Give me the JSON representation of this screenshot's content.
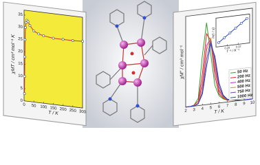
{
  "chart_data": [
    {
      "type": "line",
      "x_label": "T / K",
      "y_label": "χMT / cm³ mol⁻¹ K",
      "x": [
        2,
        3,
        4,
        5,
        7,
        10,
        15,
        20,
        30,
        50,
        75,
        100,
        150,
        200,
        250,
        300
      ],
      "values": [
        3,
        10,
        18,
        25,
        30,
        32,
        33,
        32.5,
        31,
        29,
        28,
        27.5,
        27,
        27,
        27,
        27.2
      ],
      "color": "#d0302a",
      "marker_color": "#555555",
      "background": "#f3ea3a",
      "xlim": [
        0,
        300
      ],
      "xticks": [
        0,
        50,
        100,
        150,
        200,
        250,
        300
      ],
      "ylim": [
        0,
        37
      ],
      "yticks": [
        0,
        5,
        10,
        15,
        20,
        25,
        30,
        35
      ]
    },
    {
      "type": "line",
      "x_label": "T / K",
      "y_label": "χM'' / cm³ mol⁻¹",
      "x": [
        2,
        2.5,
        3,
        3.5,
        4,
        4.5,
        5,
        5.5,
        6,
        6.5,
        7,
        8,
        9,
        10
      ],
      "xlim": [
        2,
        10
      ],
      "xticks": [
        2,
        3,
        4,
        5,
        6,
        7,
        8,
        9,
        10
      ],
      "ylim": [
        0,
        1
      ],
      "legend": "lower right",
      "series": [
        {
          "name": "50 Hz",
          "color": "#2aa02a",
          "values": [
            0,
            0,
            0.01,
            0.08,
            0.55,
            0.9,
            0.55,
            0.2,
            0.08,
            0.04,
            0.02,
            0.01,
            0,
            0
          ]
        },
        {
          "name": "200 Hz",
          "color": "#e02020",
          "values": [
            0,
            0,
            0.01,
            0.05,
            0.35,
            0.78,
            0.7,
            0.3,
            0.1,
            0.05,
            0.02,
            0.01,
            0,
            0
          ]
        },
        {
          "name": "400 Hz",
          "color": "#d020c0",
          "values": [
            0,
            0,
            0,
            0.03,
            0.25,
            0.65,
            0.72,
            0.38,
            0.13,
            0.06,
            0.03,
            0.01,
            0,
            0
          ]
        },
        {
          "name": "500 Hz",
          "color": "#e08a10",
          "values": [
            0,
            0,
            0,
            0.03,
            0.2,
            0.6,
            0.72,
            0.42,
            0.15,
            0.06,
            0.03,
            0.01,
            0,
            0
          ]
        },
        {
          "name": "750 Hz",
          "color": "#7a3ab0",
          "values": [
            0,
            0,
            0,
            0.02,
            0.15,
            0.5,
            0.7,
            0.48,
            0.18,
            0.07,
            0.03,
            0.01,
            0,
            0
          ]
        },
        {
          "name": "1000 Hz",
          "color": "#2040c0",
          "values": [
            0,
            0,
            0,
            0.02,
            0.12,
            0.42,
            0.66,
            0.52,
            0.22,
            0.08,
            0.03,
            0.01,
            0,
            0
          ]
        }
      ]
    },
    {
      "type": "line",
      "x_label": "T⁻¹ / K⁻¹",
      "y_label": "ln(τ / s)",
      "x": [
        0.185,
        0.195,
        0.205,
        0.215,
        0.225,
        0.235
      ],
      "values": [
        -9.5,
        -9,
        -8.5,
        -8,
        -7.5,
        -7
      ],
      "color": "#2040c0",
      "marker_color": "#2040c0",
      "xlim": [
        0.18,
        0.24
      ],
      "xticks": [
        {
          "value": 0.2,
          "label": "0.20"
        },
        {
          "value": 0.22,
          "label": "0.22"
        }
      ],
      "ylim": [
        -10,
        -6.5
      ]
    }
  ]
}
